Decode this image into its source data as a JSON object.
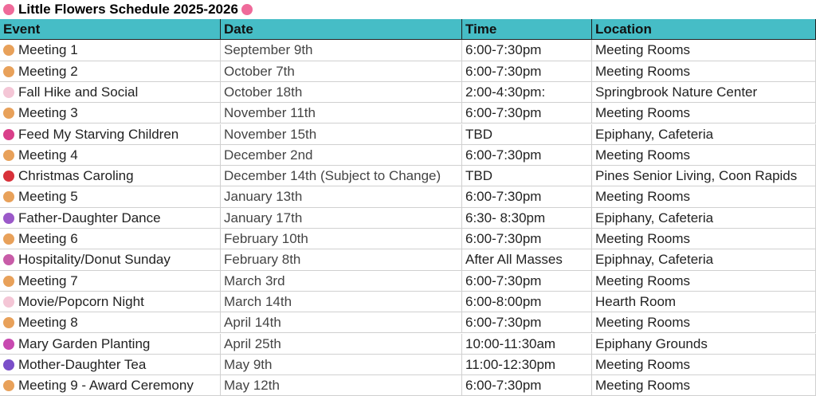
{
  "title": "Little Flowers Schedule 2025-2026",
  "table": {
    "columns": [
      "Event",
      "Date",
      "Time",
      "Location"
    ],
    "rows": [
      [
        "Meeting 1",
        "September 9th",
        "6:00-7:30pm",
        "Meeting Rooms"
      ],
      [
        "Meeting 2",
        "October 7th",
        "6:00-7:30pm",
        "Meeting Rooms"
      ],
      [
        "Fall Hike and Social",
        "October 18th",
        "2:00-4:30pm:",
        "Springbrook Nature Center"
      ],
      [
        "Meeting 3",
        "November 11th",
        "6:00-7:30pm",
        "Meeting Rooms"
      ],
      [
        "Feed My Starving Children",
        "November 15th",
        "TBD",
        "Epiphany, Cafeteria"
      ],
      [
        "Meeting 4",
        "December 2nd",
        "6:00-7:30pm",
        "Meeting Rooms"
      ],
      [
        "Christmas Caroling",
        "December 14th (Subject to Change)",
        "TBD",
        "Pines Senior Living, Coon Rapids"
      ],
      [
        "Meeting 5",
        "January 13th",
        "6:00-7:30pm",
        "Meeting Rooms"
      ],
      [
        "Father-Daughter Dance",
        "January 17th",
        "6:30- 8:30pm",
        "Epiphany, Cafeteria"
      ],
      [
        "Meeting 6",
        "February 10th",
        "6:00-7:30pm",
        "Meeting Rooms"
      ],
      [
        "Hospitality/Donut Sunday",
        "February 8th",
        "After All Masses",
        "Epiphnay, Cafeteria"
      ],
      [
        "Meeting 7",
        "March 3rd",
        "6:00-7:30pm",
        "Meeting Rooms"
      ],
      [
        "Movie/Popcorn Night",
        "March 14th",
        "6:00-8:00pm",
        "Hearth Room"
      ],
      [
        "Meeting 8",
        "April 14th",
        "6:00-7:30pm",
        "Meeting Rooms"
      ],
      [
        "Mary Garden Planting",
        "April 25th",
        "10:00-11:30am",
        "Epiphany Grounds"
      ],
      [
        "Mother-Daughter Tea",
        "May 9th",
        "11:00-12:30pm",
        "Meeting Rooms"
      ],
      [
        "Meeting 9 - Award Ceremony",
        "May 12th",
        "6:00-7:30pm",
        "Meeting Rooms"
      ]
    ]
  }
}
